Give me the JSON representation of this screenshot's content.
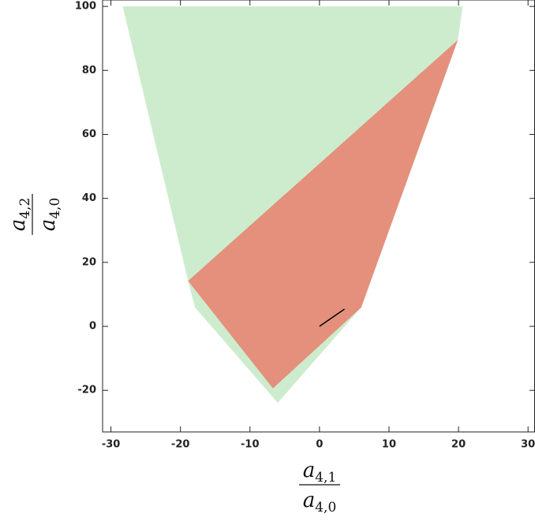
{
  "chart_data": {
    "type": "region",
    "xlabel": {
      "numerator": {
        "symbol": "a",
        "subscript": "4,1"
      },
      "denominator": {
        "symbol": "a",
        "subscript": "4,0"
      }
    },
    "ylabel": {
      "numerator": {
        "symbol": "a",
        "subscript": "4,2"
      },
      "denominator": {
        "symbol": "a",
        "subscript": "4,0"
      }
    },
    "xlim": [
      -31.2,
      31
    ],
    "ylim": [
      -33,
      102
    ],
    "xticks": [
      -30,
      -20,
      -10,
      0,
      10,
      20,
      30
    ],
    "yticks": [
      -20,
      0,
      20,
      40,
      60,
      80,
      100
    ],
    "series": [
      {
        "color": "#cdeccd",
        "x": [
          -28.3,
          20.6,
          19.9,
          6,
          -6,
          -17.9,
          -18.9
        ],
        "y": [
          100,
          100,
          89.5,
          5.9,
          -23.9,
          5.9,
          14.2
        ]
      },
      {
        "color": "#e4907c",
        "x": [
          -18.9,
          19.9,
          6,
          -6.7
        ],
        "y": [
          14.2,
          89.5,
          5.9,
          -19.4
        ]
      }
    ],
    "lines": [
      {
        "color": "#000000",
        "x": [
          0,
          3.6
        ],
        "y": [
          0,
          5.4
        ]
      }
    ]
  }
}
